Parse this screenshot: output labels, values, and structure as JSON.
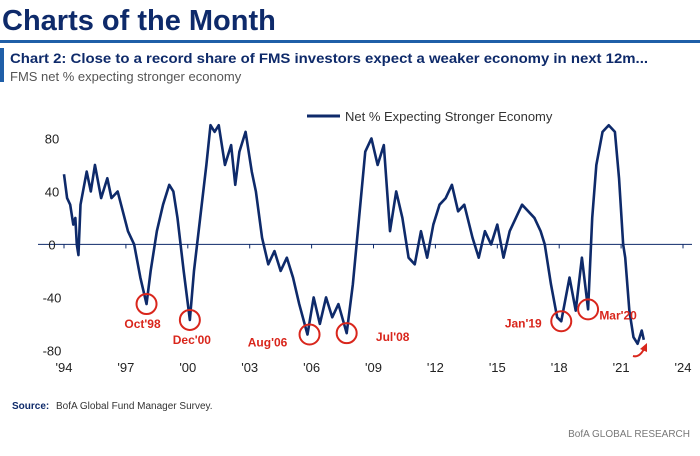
{
  "header": {
    "title": "Charts of the Month"
  },
  "chart_data": {
    "type": "line",
    "title": "Chart 2: Close to a record share of FMS investors expect a weaker economy in next 12m...",
    "subtitle": "FMS net % expecting stronger economy",
    "x": [
      1994.0,
      1994.15,
      1994.3,
      1994.45,
      1994.55,
      1994.62,
      1994.7,
      1994.8,
      1995.1,
      1995.3,
      1995.5,
      1995.8,
      1996.1,
      1996.3,
      1996.6,
      1996.8,
      1997.1,
      1997.4,
      1997.7,
      1998.0,
      1998.2,
      1998.5,
      1998.8,
      1999.1,
      1999.3,
      1999.5,
      1999.8,
      2000.1,
      2000.3,
      2000.6,
      2000.9,
      2001.1,
      2001.3,
      2001.5,
      2001.8,
      2002.1,
      2002.3,
      2002.5,
      2002.8,
      2003.1,
      2003.3,
      2003.6,
      2003.9,
      2004.2,
      2004.5,
      2004.8,
      2005.1,
      2005.4,
      2005.8,
      2006.1,
      2006.4,
      2006.7,
      2007.0,
      2007.3,
      2007.7,
      2008.0,
      2008.3,
      2008.6,
      2008.9,
      2009.2,
      2009.5,
      2009.8,
      2010.1,
      2010.4,
      2010.7,
      2011.0,
      2011.3,
      2011.6,
      2011.9,
      2012.2,
      2012.5,
      2012.8,
      2013.1,
      2013.4,
      2013.8,
      2014.1,
      2014.4,
      2014.7,
      2015.0,
      2015.3,
      2015.6,
      2015.9,
      2016.2,
      2016.5,
      2016.8,
      2017.1,
      2017.3,
      2017.6,
      2017.9,
      2018.1,
      2018.5,
      2018.8,
      2019.1,
      2019.4,
      2019.6,
      2019.8,
      2020.1,
      2020.4,
      2020.7,
      2020.9,
      2021.1,
      2021.2,
      2021.4,
      2021.6,
      2021.8,
      2022.0,
      2022.1
    ],
    "series": [
      {
        "name": "Net % Expecting Stronger Economy",
        "color": "#0e2a6a",
        "values": [
          53,
          35,
          30,
          15,
          20,
          0,
          -8,
          30,
          55,
          40,
          60,
          35,
          50,
          35,
          40,
          28,
          10,
          0,
          -25,
          -45,
          -20,
          10,
          30,
          45,
          40,
          20,
          -20,
          -57,
          -20,
          20,
          60,
          90,
          85,
          90,
          60,
          75,
          45,
          70,
          85,
          55,
          40,
          5,
          -15,
          -5,
          -20,
          -10,
          -25,
          -45,
          -68,
          -40,
          -60,
          -40,
          -55,
          -45,
          -67,
          -30,
          20,
          70,
          80,
          60,
          75,
          10,
          40,
          20,
          -10,
          -15,
          10,
          -10,
          15,
          30,
          35,
          45,
          25,
          30,
          5,
          -10,
          10,
          0,
          15,
          -10,
          10,
          20,
          30,
          25,
          20,
          10,
          0,
          -30,
          -55,
          -58,
          -25,
          -50,
          -10,
          -49,
          20,
          60,
          85,
          90,
          85,
          50,
          0,
          -10,
          -50,
          -70,
          -75,
          -65,
          -72
        ]
      }
    ],
    "annotations": [
      {
        "label": "Oct'98",
        "x": 1998.0,
        "y": -45
      },
      {
        "label": "Dec'00",
        "x": 2000.1,
        "y": -57
      },
      {
        "label": "Aug'06",
        "x": 2005.9,
        "y": -68
      },
      {
        "label": "Jul'08",
        "x": 2007.7,
        "y": -67
      },
      {
        "label": "Jan'19",
        "x": 2018.1,
        "y": -58
      },
      {
        "label": "Mar'20",
        "x": 2019.4,
        "y": -49
      }
    ],
    "annotation_color": "#d9261c",
    "xlim": [
      1994,
      2024
    ],
    "xticks": [
      {
        "value": 1994,
        "label": "'94"
      },
      {
        "value": 1997,
        "label": "'97"
      },
      {
        "value": 2000,
        "label": "'00"
      },
      {
        "value": 2003,
        "label": "'03"
      },
      {
        "value": 2006,
        "label": "'06"
      },
      {
        "value": 2009,
        "label": "'09"
      },
      {
        "value": 2012,
        "label": "'12"
      },
      {
        "value": 2015,
        "label": "'15"
      },
      {
        "value": 2018,
        "label": "'18"
      },
      {
        "value": 2021,
        "label": "'21"
      },
      {
        "value": 2024,
        "label": "'24"
      }
    ],
    "ylim": [
      -88,
      95
    ],
    "yticks": [
      -80,
      -40,
      0,
      40,
      80
    ],
    "legend": "top"
  },
  "footer": {
    "source_label": "Source:",
    "source": "BofA Global Fund Manager Survey.",
    "brand": "BofA GLOBAL RESEARCH"
  }
}
